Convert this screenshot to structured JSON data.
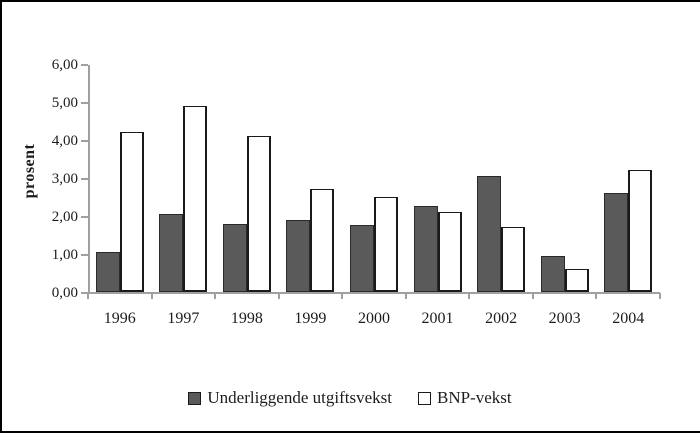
{
  "colors": {
    "bar_dark": "#5a5a5a",
    "bar_light": "#ffffff",
    "bar_border": "#1a1a1a",
    "axis": "#a0a0a0",
    "text": "#1c1c1c"
  },
  "chart_data": {
    "type": "bar",
    "title": "",
    "ylabel": "prosent",
    "xlabel": "",
    "categories": [
      "1996",
      "1997",
      "1998",
      "1999",
      "2000",
      "2001",
      "2002",
      "2003",
      "2004"
    ],
    "series": [
      {
        "name": "Underliggende utgiftsvekst",
        "color": "#5a5a5a",
        "values": [
          1.05,
          2.05,
          1.8,
          1.9,
          1.75,
          2.25,
          3.05,
          0.95,
          2.6
        ]
      },
      {
        "name": "BNP-vekst",
        "color": "#ffffff",
        "values": [
          4.2,
          4.9,
          4.1,
          2.7,
          2.5,
          2.1,
          1.7,
          0.6,
          3.2
        ]
      }
    ],
    "ylim": [
      0,
      6
    ],
    "ytick_step": 1,
    "ytick_labels": [
      "0,00",
      "1,00",
      "2,00",
      "3,00",
      "4,00",
      "5,00",
      "6,00"
    ],
    "grid": false,
    "legend_position": "bottom"
  }
}
